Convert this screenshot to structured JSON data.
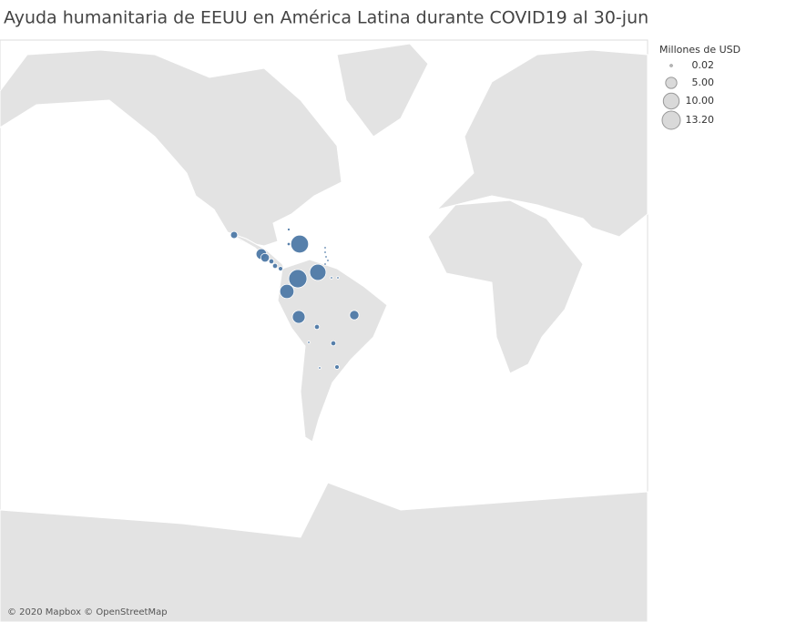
{
  "chart_data": {
    "type": "map",
    "title": "Ayuda humanitaria de EEUU en América Latina durante COVID19 al 30-jun",
    "color": "#4e79a7",
    "values": [
      2,
      12.5,
      0.3,
      0.4,
      4.5,
      3,
      1,
      1,
      0.8,
      13.2,
      10.5,
      8,
      6.5,
      3.5,
      1,
      1,
      0.1,
      0.05,
      0.8,
      0.1,
      0.1,
      0.1,
      0.1,
      0.1,
      0.1,
      0.2
    ],
    "legend": {
      "title": "Millones de USD",
      "entries": [
        0.02,
        {
          "value": 5,
          "label": "5.00"
        },
        {
          "value": 10,
          "label": "10.00"
        },
        {
          "value": 13.2,
          "label": "13.20"
        }
      ]
    },
    "attribution": "© 2020 Mapbox © OpenStreetMap"
  }
}
